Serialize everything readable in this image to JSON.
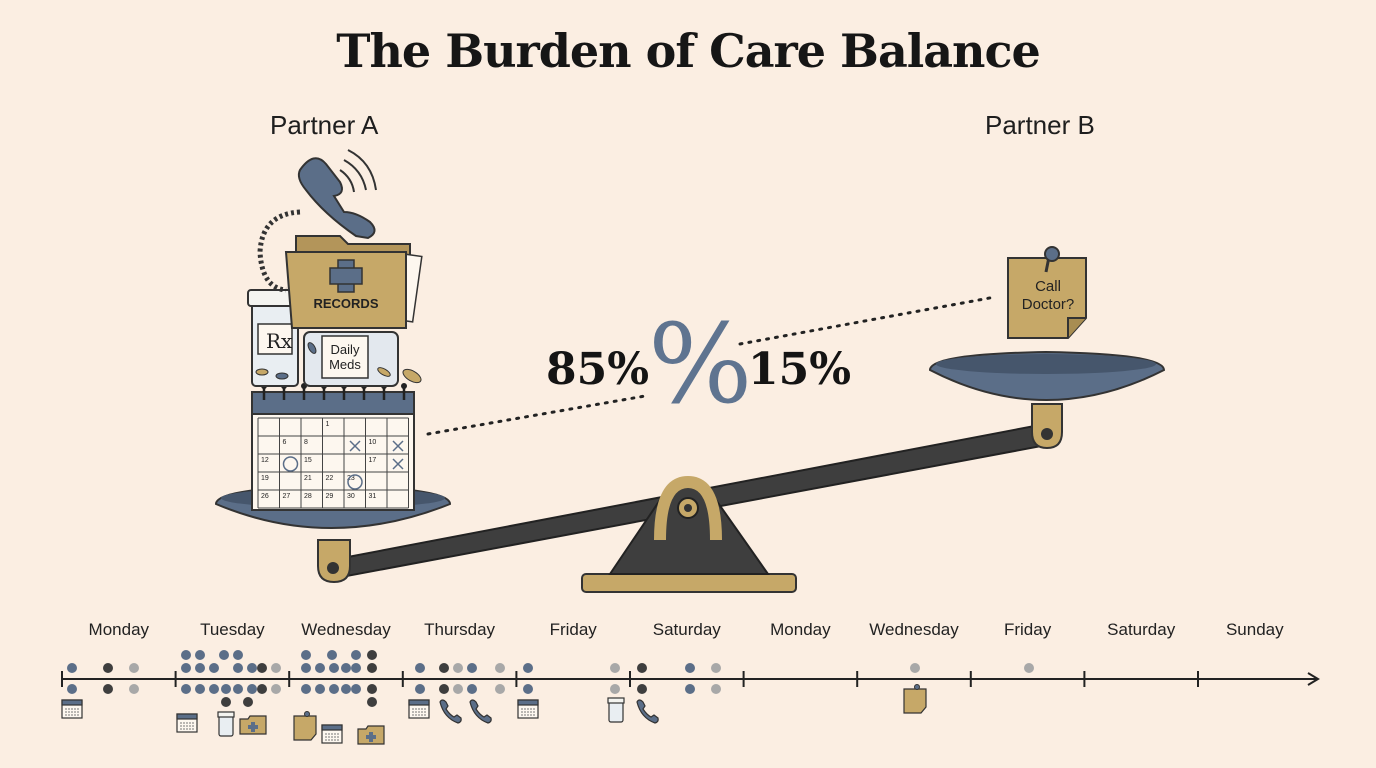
{
  "title": "The Burden of Care Balance",
  "partners": {
    "a": {
      "label": "Partner A",
      "share": "85%"
    },
    "b": {
      "label": "Partner B",
      "share": "15%"
    }
  },
  "percent_sign": "%",
  "items": {
    "records_label": "RECORDS",
    "meds_label": "Daily Meds",
    "rx_label": "Rx",
    "note_label": "Call Doctor?"
  },
  "calendar_dates": [
    "1",
    "6",
    "8",
    "10",
    "12",
    "15",
    "17",
    "19",
    "21",
    "22",
    "23",
    "26",
    "27",
    "28",
    "29",
    "30",
    "31"
  ],
  "timeline": {
    "days": [
      "Monday",
      "Tuesday",
      "Wednesday",
      "Thursday",
      "Friday",
      "Saturday",
      "Monday",
      "Wednesday",
      "Friday",
      "Saturday",
      "Sunday"
    ]
  },
  "colors": {
    "background": "#fbeee2",
    "steel_blue": "#5b6e88",
    "gold": "#c6a868",
    "dark": "#3e3e3e",
    "grey": "#a8a8a8"
  }
}
